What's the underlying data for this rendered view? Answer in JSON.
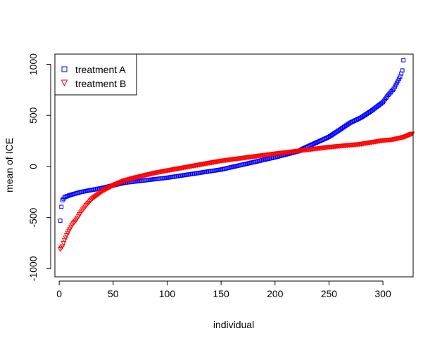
{
  "chart_data": {
    "type": "scatter",
    "xlabel": "individual",
    "ylabel": "mean of ICE",
    "xlim": [
      -4,
      328
    ],
    "ylim": [
      -1080,
      1100
    ],
    "xticks": [
      0,
      50,
      100,
      150,
      200,
      250,
      300
    ],
    "yticks": [
      -1000,
      -500,
      0,
      500,
      1000
    ],
    "xtick_labels": [
      "0",
      "50",
      "100",
      "150",
      "200",
      "250",
      "300"
    ],
    "ytick_labels": [
      "-1000",
      "-500",
      "0",
      "500",
      "1000"
    ],
    "n_points": 327,
    "legend_position": "top-left",
    "series": [
      {
        "name": "treatment A",
        "marker": "square",
        "color": "#0000FF",
        "control_points": [
          [
            1,
            -530
          ],
          [
            2,
            -395
          ],
          [
            3,
            -330
          ],
          [
            5,
            -300
          ],
          [
            10,
            -280
          ],
          [
            20,
            -250
          ],
          [
            40,
            -210
          ],
          [
            60,
            -160
          ],
          [
            80,
            -135
          ],
          [
            100,
            -110
          ],
          [
            150,
            -30
          ],
          [
            200,
            90
          ],
          [
            222,
            150
          ],
          [
            225,
            170
          ],
          [
            250,
            290
          ],
          [
            270,
            430
          ],
          [
            280,
            480
          ],
          [
            290,
            550
          ],
          [
            300,
            630
          ],
          [
            305,
            700
          ],
          [
            310,
            760
          ],
          [
            314,
            840
          ],
          [
            316,
            880
          ],
          [
            318,
            940
          ],
          [
            319,
            1040
          ]
        ]
      },
      {
        "name": "treatment B",
        "marker": "triangle-down",
        "color": "#FF0000",
        "control_points": [
          [
            1,
            -810
          ],
          [
            3,
            -780
          ],
          [
            5,
            -720
          ],
          [
            8,
            -650
          ],
          [
            12,
            -570
          ],
          [
            16,
            -520
          ],
          [
            20,
            -450
          ],
          [
            25,
            -380
          ],
          [
            30,
            -320
          ],
          [
            40,
            -240
          ],
          [
            50,
            -185
          ],
          [
            60,
            -140
          ],
          [
            70,
            -110
          ],
          [
            90,
            -60
          ],
          [
            100,
            -40
          ],
          [
            150,
            55
          ],
          [
            200,
            125
          ],
          [
            250,
            190
          ],
          [
            280,
            220
          ],
          [
            300,
            255
          ],
          [
            310,
            265
          ],
          [
            320,
            290
          ],
          [
            327,
            320
          ]
        ]
      }
    ]
  }
}
